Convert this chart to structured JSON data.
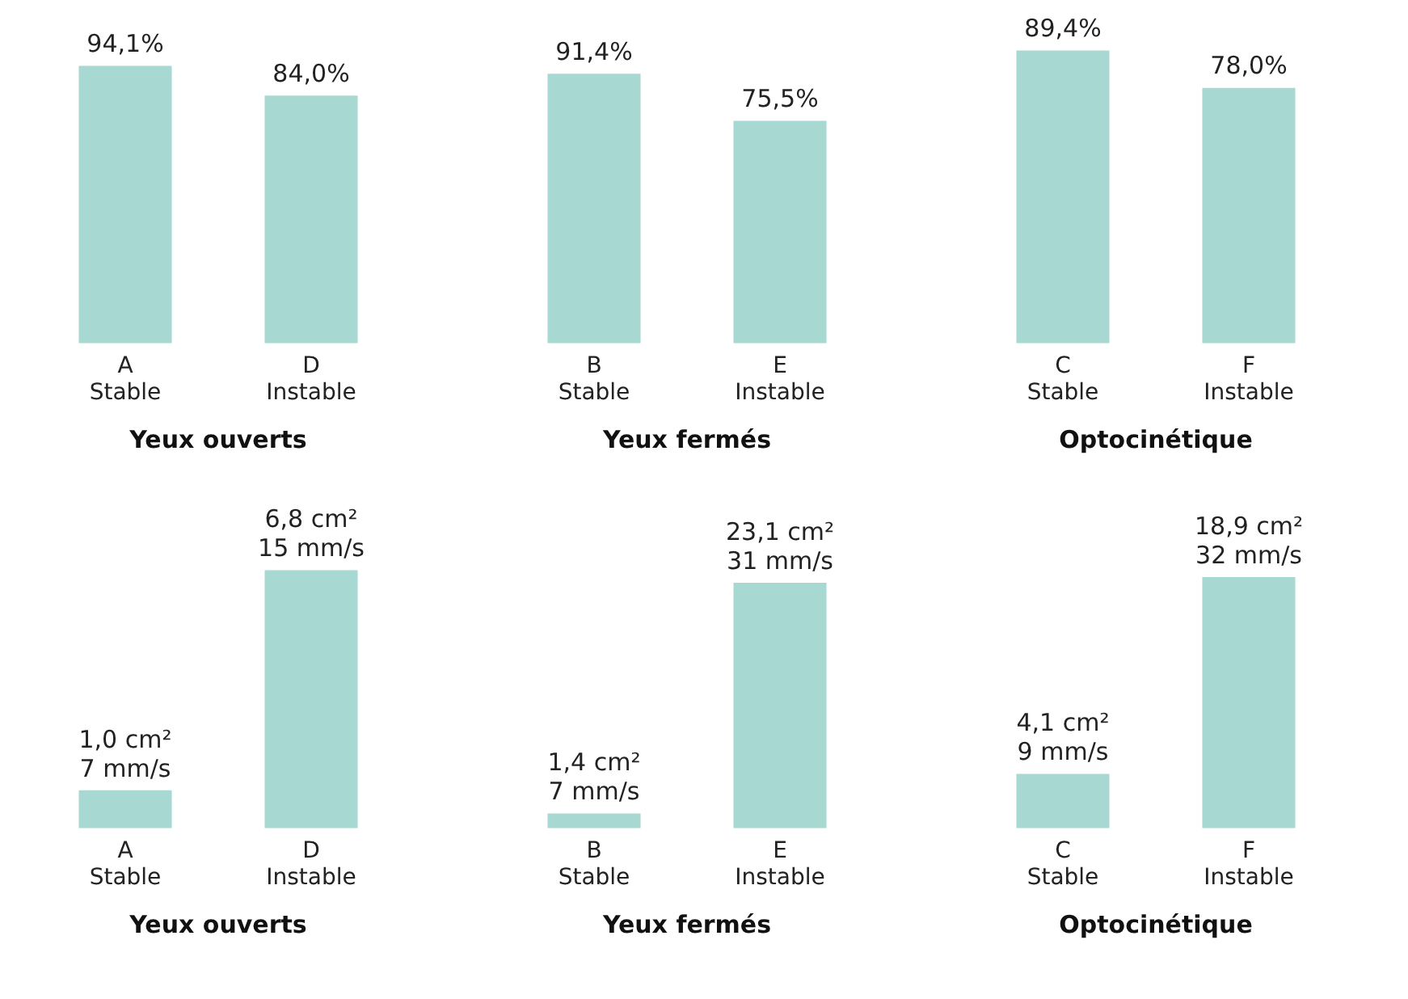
{
  "chart_data": [
    {
      "type": "bar",
      "categories": [
        "A\nStable",
        "D\nInstable"
      ],
      "values": [
        94.1,
        84.0
      ],
      "color": "#a8d8d2",
      "value_labels": [
        "94,1%",
        "84,0%"
      ],
      "xlabel": "Yeux ouverts",
      "tick_labels": "x",
      "grid": false
    },
    {
      "type": "bar",
      "categories": [
        "B\nStable",
        "E\nInstable"
      ],
      "values": [
        91.4,
        75.5
      ],
      "color": "#a8d8d2",
      "value_labels": [
        "91,4%",
        "75,5%"
      ],
      "xlabel": "Yeux fermés",
      "tick_labels": "x",
      "grid": false
    },
    {
      "type": "bar",
      "categories": [
        "C\nStable",
        "F\nInstable"
      ],
      "values": [
        89.4,
        78.0
      ],
      "color": "#a8d8d2",
      "value_labels": [
        "89,4%",
        "78,0%"
      ],
      "xlabel": "Optocinétique",
      "tick_labels": "x",
      "grid": false
    },
    {
      "type": "bar",
      "categories": [
        "A\nStable",
        "D\nInstable"
      ],
      "values": [
        1.0,
        6.8
      ],
      "color": "#a8d8d2",
      "value_labels": [
        "1,0 cm²\n7 mm/s",
        "6,8 cm²\n15 mm/s"
      ],
      "xlabel": "Yeux ouverts",
      "tick_labels": "x",
      "grid": false
    },
    {
      "type": "bar",
      "categories": [
        "B\nStable",
        "E\nInstable"
      ],
      "values": [
        1.4,
        23.1
      ],
      "color": "#a8d8d2",
      "value_labels": [
        "1,4 cm²\n7 mm/s",
        "23,1 cm²\n31 mm/s"
      ],
      "xlabel": "Yeux fermés",
      "tick_labels": "x",
      "grid": false
    },
    {
      "type": "bar",
      "categories": [
        "C\nStable",
        "F\nInstable"
      ],
      "values": [
        4.1,
        18.9
      ],
      "color": "#a8d8d2",
      "value_labels": [
        "4,1 cm²\n9 mm/s",
        "18,9 cm²\n32 mm/s"
      ],
      "xlabel": "Optocinétique",
      "tick_labels": "x",
      "grid": false
    }
  ]
}
